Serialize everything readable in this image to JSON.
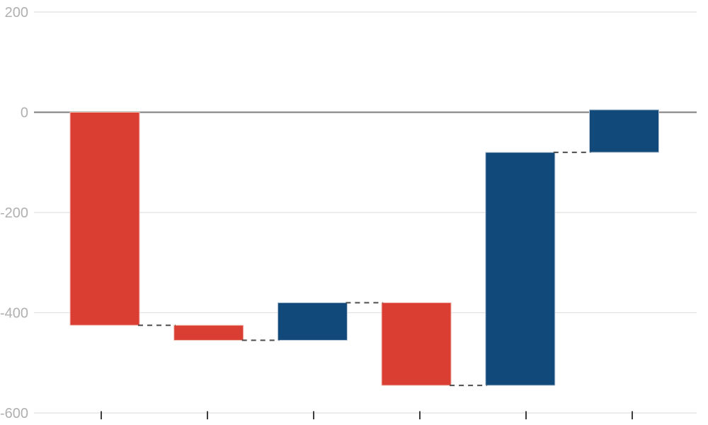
{
  "chart_data": {
    "type": "bar",
    "subtype": "waterfall",
    "title": "",
    "xlabel": "",
    "ylabel": "",
    "legend": "none",
    "grid": true,
    "background": "#ffffff",
    "y_axis": {
      "ticks": [
        200,
        0,
        -200,
        -400,
        -600
      ],
      "tick_labels": [
        "200",
        "0",
        "-200",
        "-400",
        "-600"
      ],
      "range": [
        -600,
        200
      ],
      "zero_line": true
    },
    "x_axis": {
      "tick_count": 6,
      "tick_labels": []
    },
    "cumulative": [
      0,
      -425,
      -455,
      -380,
      -545,
      -80,
      5
    ],
    "bars": [
      {
        "start": 0,
        "end": -425,
        "change": -425,
        "direction": "decrease"
      },
      {
        "start": -425,
        "end": -455,
        "change": -30,
        "direction": "decrease"
      },
      {
        "start": -455,
        "end": -380,
        "change": 75,
        "direction": "increase"
      },
      {
        "start": -380,
        "end": -545,
        "change": -165,
        "direction": "decrease"
      },
      {
        "start": -545,
        "end": -80,
        "change": 465,
        "direction": "increase"
      },
      {
        "start": -80,
        "end": 5,
        "change": 85,
        "direction": "increase"
      }
    ],
    "connector_style": "dashed",
    "colors": {
      "decrease": "#da3e32",
      "decrease_border": "#f2beb4",
      "increase": "#11497a",
      "increase_border": "#b9c9d7",
      "gridline": "#e1e1e1",
      "zero_line": "#7d7d7d",
      "connector": "#4d4d4d",
      "axis_tick": "#3d3d3d",
      "tick_label": "#b0b0b0"
    }
  }
}
